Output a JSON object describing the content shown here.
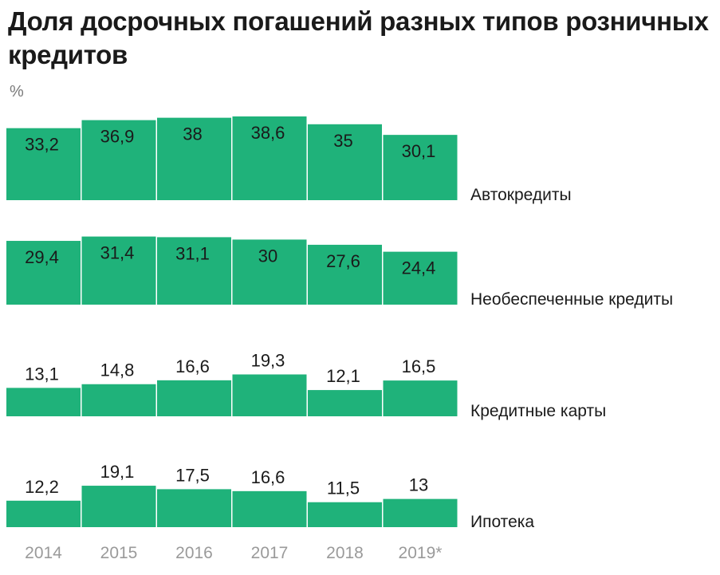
{
  "title": "Доля досрочных погашений разных типов розничных кредитов",
  "unit": "%",
  "colors": {
    "bar": "#1fb27a",
    "text": "#1a1a1a",
    "year": "#9a9a9a"
  },
  "chart_data": {
    "type": "bar",
    "categories": [
      "2014",
      "2015",
      "2016",
      "2017",
      "2018",
      "2019*"
    ],
    "series": [
      {
        "name": "Автокредиты",
        "values": [
          33.2,
          36.9,
          38,
          38.6,
          35,
          30.1
        ],
        "labels": [
          "33,2",
          "36,9",
          "38",
          "38,6",
          "35",
          "30,1"
        ]
      },
      {
        "name": "Необеспеченные кредиты",
        "values": [
          29.4,
          31.4,
          31.1,
          30,
          27.6,
          24.4
        ],
        "labels": [
          "29,4",
          "31,4",
          "31,1",
          "30",
          "27,6",
          "24,4"
        ]
      },
      {
        "name": "Кредитные карты",
        "values": [
          13.1,
          14.8,
          16.6,
          19.3,
          12.1,
          16.5
        ],
        "labels": [
          "13,1",
          "14,8",
          "16,6",
          "19,3",
          "12,1",
          "16,5"
        ]
      },
      {
        "name": "Ипотека",
        "values": [
          12.2,
          19.1,
          17.5,
          16.6,
          11.5,
          13
        ],
        "labels": [
          "12,2",
          "19,1",
          "17,5",
          "16,6",
          "11,5",
          "13"
        ]
      }
    ],
    "ylabel": "%"
  }
}
